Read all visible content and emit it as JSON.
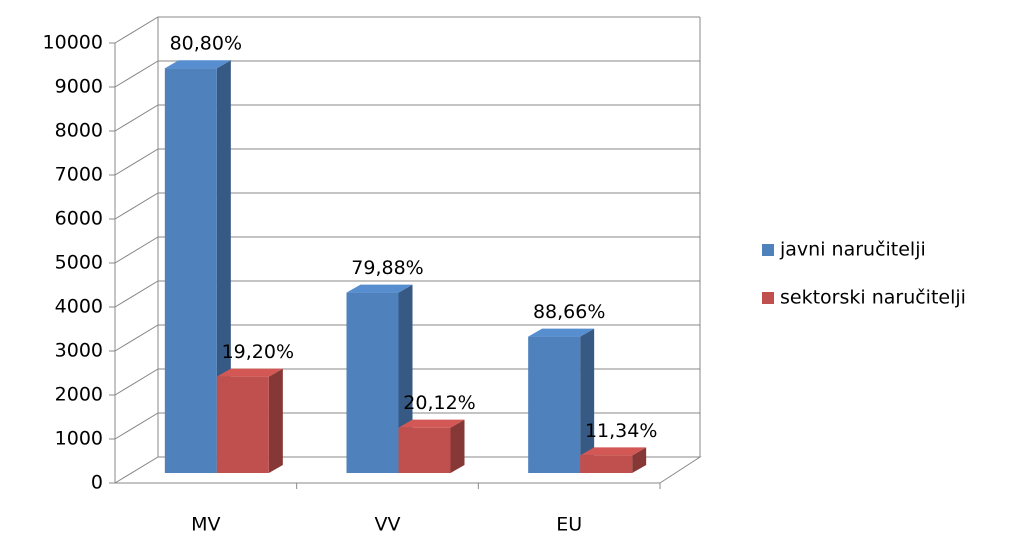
{
  "chart_data": {
    "type": "bar3d",
    "categories": [
      "MV",
      "VV",
      "EU"
    ],
    "series": [
      {
        "name": "javni naručitelji",
        "color": "#4f81bd",
        "values": [
          9200,
          4100,
          3100
        ],
        "percent_labels": [
          "80,80%",
          "79,88%",
          "88,66%"
        ]
      },
      {
        "name": "sektorski naručitelji",
        "color": "#c0504d",
        "values": [
          2190,
          1030,
          400
        ],
        "percent_labels": [
          "19,20%",
          "20,12%",
          "11,34%"
        ]
      }
    ],
    "ylim": [
      0,
      10000
    ],
    "yticks": [
      0,
      1000,
      2000,
      3000,
      4000,
      5000,
      6000,
      7000,
      8000,
      9000,
      10000
    ],
    "grid": true,
    "legend": "right"
  }
}
